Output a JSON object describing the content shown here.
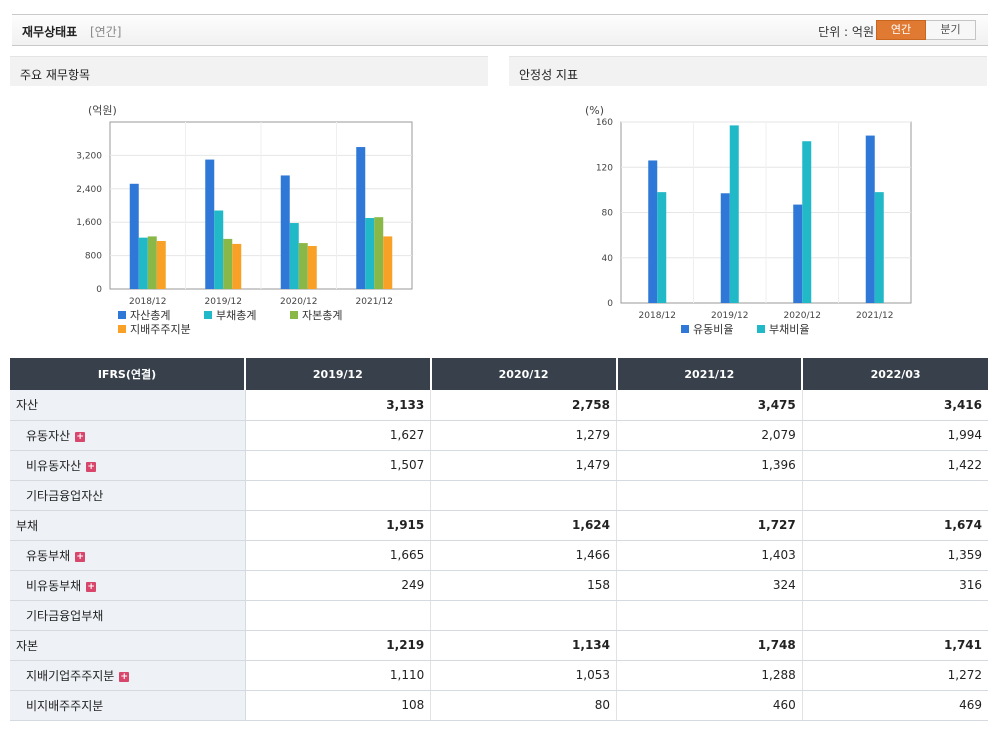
{
  "header": {
    "title": "재무상태표",
    "subtitle": "[연간]",
    "unit_label": "단위 : 억원",
    "toggle_annual": "연간",
    "toggle_quarter": "분기"
  },
  "panels": {
    "left_title": "주요 재무항목",
    "right_title": "안정성 지표"
  },
  "chart_data": [
    {
      "type": "bar",
      "ylabel": "(억원)",
      "ylim": [
        0,
        4000
      ],
      "yticks": [
        0,
        800,
        1600,
        2400,
        3200
      ],
      "ytick_labels": [
        "0",
        "800",
        "1,600",
        "2,400",
        "3,200"
      ],
      "categories": [
        "2018/12",
        "2019/12",
        "2020/12",
        "2021/12"
      ],
      "series": [
        {
          "name": "자산총계",
          "color": "#2f78d8",
          "values": [
            2520,
            3100,
            2720,
            3400
          ]
        },
        {
          "name": "부채총계",
          "color": "#21b9c7",
          "values": [
            1230,
            1880,
            1580,
            1700
          ]
        },
        {
          "name": "자본총계",
          "color": "#8ab848",
          "values": [
            1260,
            1200,
            1100,
            1720
          ]
        },
        {
          "name": "지배주주지분",
          "color": "#f9a126",
          "values": [
            1150,
            1080,
            1030,
            1260
          ]
        }
      ],
      "grid": true,
      "legend": "bottom"
    },
    {
      "type": "bar",
      "ylabel": "(%)",
      "ylim": [
        0,
        160
      ],
      "yticks": [
        0,
        40,
        80,
        120,
        160
      ],
      "ytick_labels": [
        "0",
        "40",
        "80",
        "120",
        "160"
      ],
      "categories": [
        "2018/12",
        "2019/12",
        "2020/12",
        "2021/12"
      ],
      "series": [
        {
          "name": "유동비율",
          "color": "#2f78d8",
          "values": [
            126,
            97,
            87,
            148
          ]
        },
        {
          "name": "부채비율",
          "color": "#21b9c7",
          "values": [
            98,
            157,
            143,
            98
          ]
        }
      ],
      "grid": true,
      "legend": "bottom"
    }
  ],
  "table": {
    "corner": "IFRS(연결)",
    "columns": [
      "2019/12",
      "2020/12",
      "2021/12",
      "2022/03"
    ],
    "rows": [
      {
        "label": "자산",
        "level": "main",
        "plus": false,
        "values": [
          "3,133",
          "2,758",
          "3,475",
          "3,416"
        ]
      },
      {
        "label": "유동자산",
        "level": "sub",
        "plus": true,
        "values": [
          "1,627",
          "1,279",
          "2,079",
          "1,994"
        ]
      },
      {
        "label": "비유동자산",
        "level": "sub",
        "plus": true,
        "values": [
          "1,507",
          "1,479",
          "1,396",
          "1,422"
        ]
      },
      {
        "label": "기타금융업자산",
        "level": "sub",
        "plus": false,
        "values": [
          "",
          "",
          "",
          ""
        ]
      },
      {
        "label": "부채",
        "level": "main",
        "plus": false,
        "values": [
          "1,915",
          "1,624",
          "1,727",
          "1,674"
        ]
      },
      {
        "label": "유동부채",
        "level": "sub",
        "plus": true,
        "values": [
          "1,665",
          "1,466",
          "1,403",
          "1,359"
        ]
      },
      {
        "label": "비유동부채",
        "level": "sub",
        "plus": true,
        "values": [
          "249",
          "158",
          "324",
          "316"
        ]
      },
      {
        "label": "기타금융업부채",
        "level": "sub",
        "plus": false,
        "values": [
          "",
          "",
          "",
          ""
        ]
      },
      {
        "label": "자본",
        "level": "main",
        "plus": false,
        "values": [
          "1,219",
          "1,134",
          "1,748",
          "1,741"
        ]
      },
      {
        "label": "지배기업주주지분",
        "level": "sub",
        "plus": true,
        "values": [
          "1,110",
          "1,053",
          "1,288",
          "1,272"
        ]
      },
      {
        "label": "비지배주주지분",
        "level": "sub",
        "plus": false,
        "values": [
          "108",
          "80",
          "460",
          "469"
        ]
      }
    ],
    "plus_symbol": "+"
  }
}
